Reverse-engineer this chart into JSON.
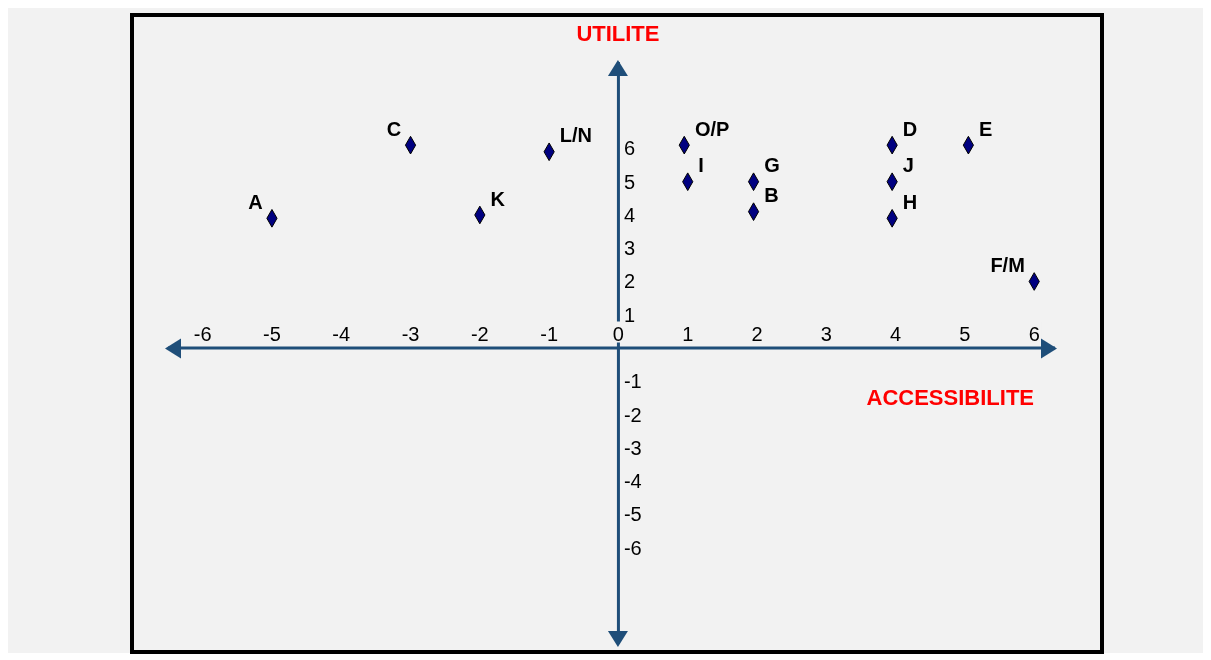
{
  "chart_data": {
    "type": "scatter",
    "xlabel": "ACCESSIBILITE",
    "ylabel": "UTILITE",
    "x": [
      -5,
      -3,
      -2,
      -1,
      0.95,
      1,
      1.95,
      1.95,
      3.95,
      3.95,
      3.95,
      5.05,
      6
    ],
    "values": [
      3.9,
      6.1,
      4,
      5.9,
      6.1,
      5,
      5,
      4.1,
      6.1,
      5,
      3.9,
      6.1,
      2
    ],
    "value_labels": [
      "A",
      "C",
      "K",
      "L/N",
      "O/P",
      "I",
      "G",
      "B",
      "D",
      "J",
      "H",
      "E",
      "F/M"
    ],
    "color": "#000080",
    "marker": "diamond",
    "grid": false,
    "xlim": [
      -6.5,
      6.3
    ],
    "ylim": [
      -8.9,
      8.6
    ],
    "xticks": [
      -6,
      -5,
      -4,
      -3,
      -2,
      -1,
      {
        "value": 0,
        "label": "0"
      },
      1,
      2,
      3,
      4,
      5,
      6
    ],
    "yticks": [
      -6,
      -5,
      -4,
      -3,
      -2,
      -1,
      1,
      2,
      3,
      4,
      5,
      6
    ]
  }
}
